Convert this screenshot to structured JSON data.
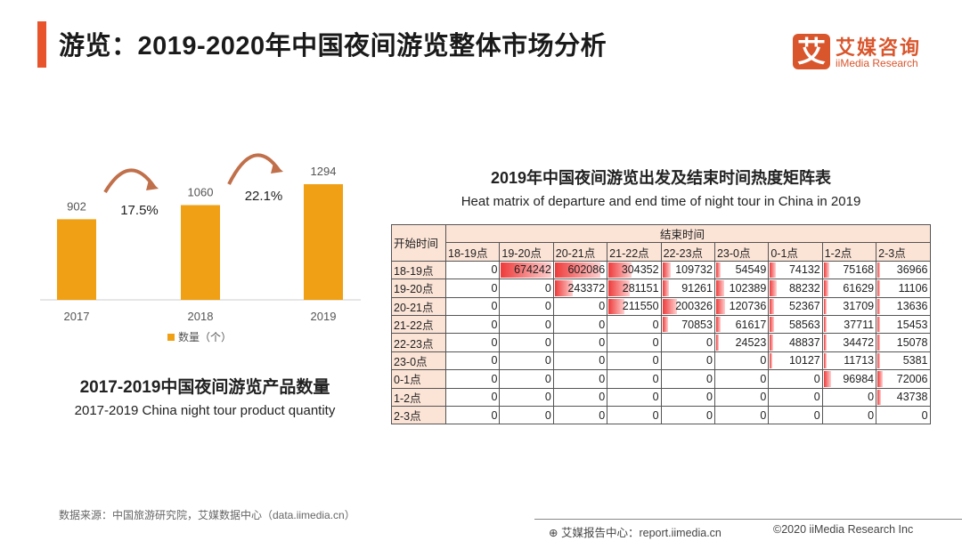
{
  "header": {
    "title": "游览：2019-2020年中国夜间游览整体市场分析"
  },
  "logo": {
    "mark": "艾",
    "cn": "艾媒咨询",
    "en": "iiMedia Research"
  },
  "colors": {
    "accent": "#e8542c",
    "bar": "#f0a014",
    "arrow": "#c0704a",
    "heat": "#ee3b3b",
    "header_bg": "#fbe3d6"
  },
  "chart_data": [
    {
      "type": "bar",
      "categories": [
        "2017",
        "2018",
        "2019"
      ],
      "series": [
        {
          "name": "数量（个）",
          "values": [
            902,
            1060,
            1294
          ]
        }
      ],
      "annotations": [
        "17.5%",
        "22.1%"
      ],
      "title": "2017-2019中国夜间游览产品数量",
      "subtitle": "2017-2019 China night tour product quantity",
      "legend": "bottom",
      "grid": false,
      "ylim": [
        0,
        1294
      ]
    },
    {
      "type": "heatmap",
      "title": "2019年中国夜间游览出发及结束时间热度矩阵表",
      "subtitle": "Heat matrix of departure and end time of night tour in China in 2019",
      "row_header": "开始时间",
      "col_header": "结束时间",
      "columns": [
        "18-19点",
        "19-20点",
        "20-21点",
        "21-22点",
        "22-23点",
        "23-0点",
        "0-1点",
        "1-2点",
        "2-3点"
      ],
      "rows": [
        {
          "label": "18-19点",
          "values": [
            0,
            674242,
            602086,
            304352,
            109732,
            54549,
            74132,
            75168,
            36966
          ]
        },
        {
          "label": "19-20点",
          "values": [
            0,
            0,
            243372,
            281151,
            91261,
            102389,
            88232,
            61629,
            11106
          ]
        },
        {
          "label": "20-21点",
          "values": [
            0,
            0,
            0,
            211550,
            200326,
            120736,
            52367,
            31709,
            13636
          ]
        },
        {
          "label": "21-22点",
          "values": [
            0,
            0,
            0,
            0,
            70853,
            61617,
            58563,
            37711,
            15453
          ]
        },
        {
          "label": "22-23点",
          "values": [
            0,
            0,
            0,
            0,
            0,
            24523,
            48837,
            34472,
            15078
          ]
        },
        {
          "label": "23-0点",
          "values": [
            0,
            0,
            0,
            0,
            0,
            0,
            10127,
            11713,
            5381
          ]
        },
        {
          "label": "0-1点",
          "values": [
            0,
            0,
            0,
            0,
            0,
            0,
            0,
            96984,
            72006
          ]
        },
        {
          "label": "1-2点",
          "values": [
            0,
            0,
            0,
            0,
            0,
            0,
            0,
            0,
            43738
          ]
        },
        {
          "label": "2-3点",
          "values": [
            0,
            0,
            0,
            0,
            0,
            0,
            0,
            0,
            0
          ]
        }
      ]
    }
  ],
  "footer": {
    "source": "数据来源：中国旅游研究院，艾媒数据中心（data.iimedia.cn）",
    "report": "艾媒报告中心：report.iimedia.cn",
    "copyright": "©2020  iiMedia Research  Inc",
    "report_icon": "globe-cursor-icon"
  }
}
